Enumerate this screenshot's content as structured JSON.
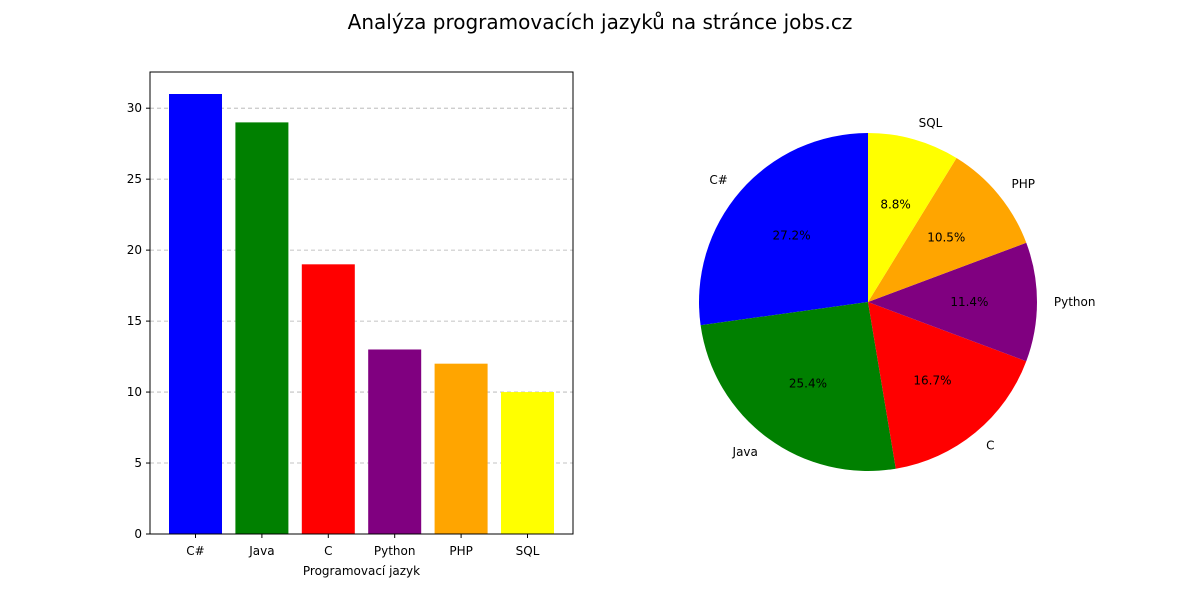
{
  "figure_title": "Analýza programovacích jazyků na stránce jobs.cz",
  "chart_data": [
    {
      "type": "bar",
      "categories": [
        "C#",
        "Java",
        "C",
        "Python",
        "PHP",
        "SQL"
      ],
      "values": [
        31,
        29,
        19,
        13,
        12,
        10
      ],
      "colors": [
        "#0000ff",
        "#008000",
        "#ff0000",
        "#800080",
        "#ffa500",
        "#ffff00"
      ],
      "xlabel": "Programovací jazyk",
      "ylabel": "",
      "ylim": [
        0,
        32.55
      ],
      "yticks": [
        0,
        5,
        10,
        15,
        20,
        25,
        30
      ],
      "grid": "y-dashed"
    },
    {
      "type": "pie",
      "labels": [
        "C#",
        "Java",
        "C",
        "Python",
        "PHP",
        "SQL"
      ],
      "values": [
        31,
        29,
        19,
        13,
        12,
        10
      ],
      "percent_labels": [
        "27.2%",
        "25.4%",
        "16.7%",
        "11.4%",
        "10.5%",
        "8.8%"
      ],
      "colors": [
        "#0000ff",
        "#008000",
        "#ff0000",
        "#800080",
        "#ffa500",
        "#ffff00"
      ],
      "start_angle": 90,
      "direction": "counterclockwise"
    }
  ]
}
